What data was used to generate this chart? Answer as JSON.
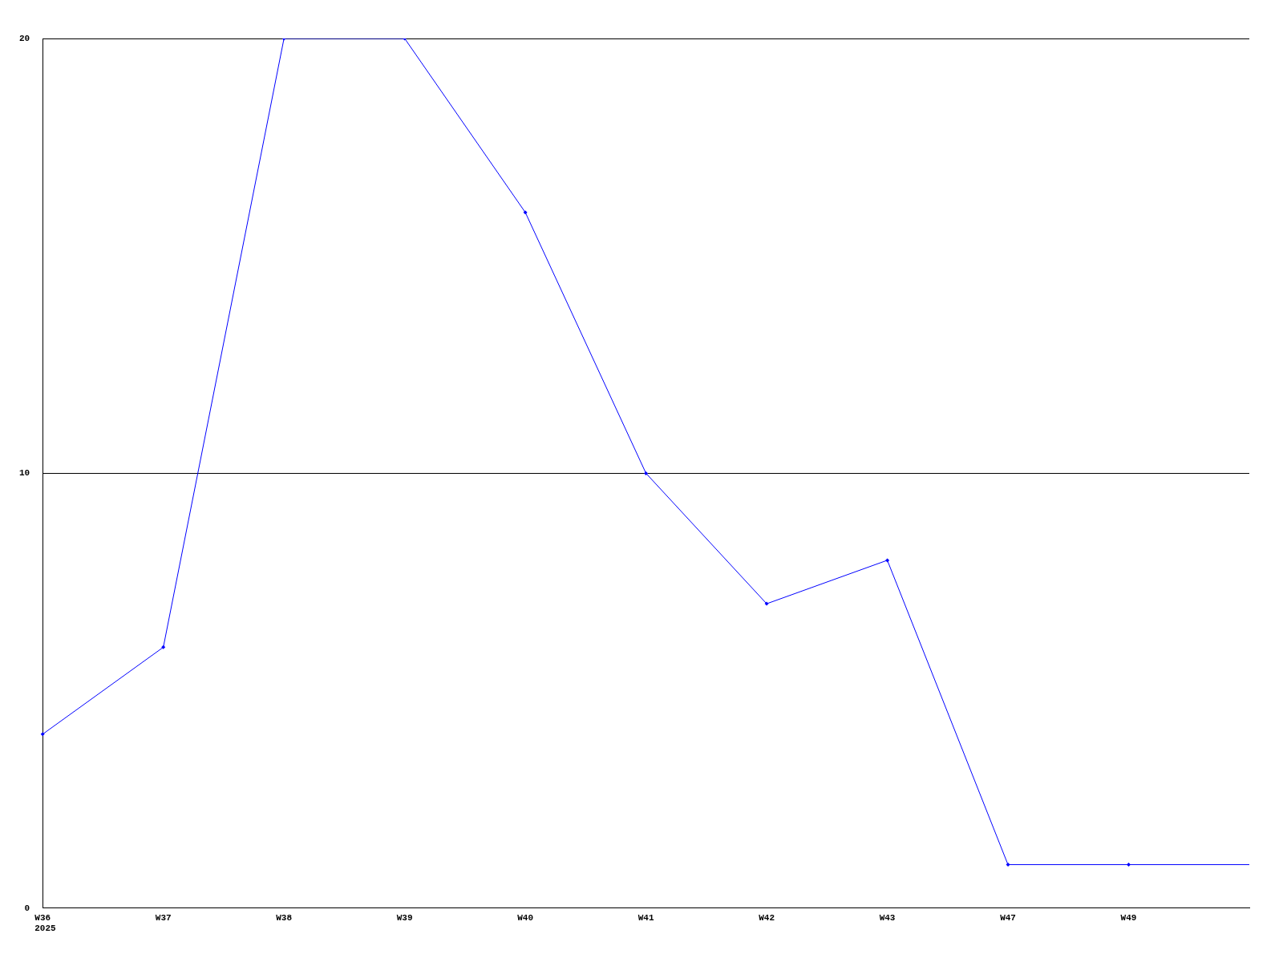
{
  "chart_data": {
    "type": "line",
    "categories": [
      "W36",
      "W37",
      "W38",
      "W39",
      "W40",
      "W41",
      "W42",
      "W43",
      "W47",
      "W49",
      null
    ],
    "series": [
      {
        "color": "#0000ff",
        "values": [
          4,
          6,
          20,
          20,
          16,
          10,
          7,
          8,
          1,
          1,
          1
        ]
      }
    ],
    "ylim": [
      0,
      20
    ],
    "yticks": [
      0,
      10,
      20
    ],
    "grid": "y",
    "legend": false,
    "marker": "diamond",
    "line_style": "solid",
    "annotations": [
      "2025"
    ]
  }
}
